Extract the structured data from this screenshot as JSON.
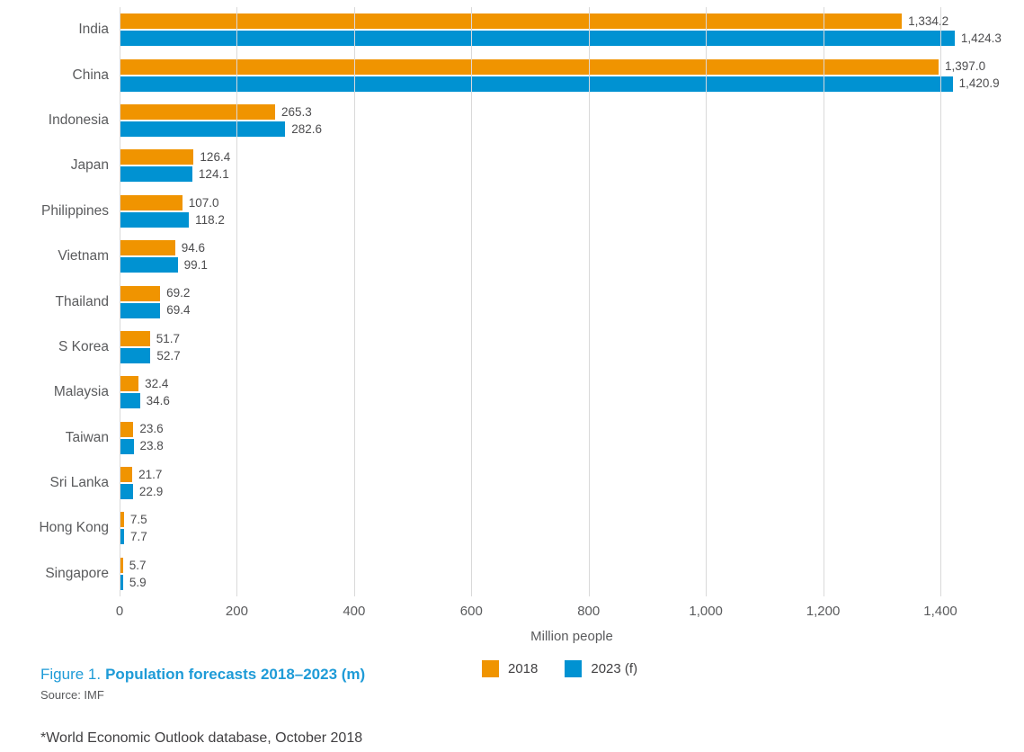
{
  "chart_data": {
    "type": "bar",
    "orientation": "horizontal",
    "categories": [
      "India",
      "China",
      "Indonesia",
      "Japan",
      "Philippines",
      "Vietnam",
      "Thailand",
      "S Korea",
      "Malaysia",
      "Taiwan",
      "Sri Lanka",
      "Hong Kong",
      "Singapore"
    ],
    "series": [
      {
        "name": "2018",
        "color": "#f09400",
        "values": [
          1334.2,
          1397.0,
          265.3,
          126.4,
          107.0,
          94.6,
          69.2,
          51.7,
          32.4,
          23.6,
          21.7,
          7.5,
          5.7
        ],
        "labels": [
          "1,334.2",
          "1,397.0",
          "265.3",
          "126.4",
          "107.0",
          "94.6",
          "69.2",
          "51.7",
          "32.4",
          "23.6",
          "21.7",
          "7.5",
          "5.7"
        ]
      },
      {
        "name": "2023 (f)",
        "color": "#0092d2",
        "values": [
          1424.3,
          1420.9,
          282.6,
          124.1,
          118.2,
          99.1,
          69.4,
          52.7,
          34.6,
          23.8,
          22.9,
          7.7,
          5.9
        ],
        "labels": [
          "1,424.3",
          "1,420.9",
          "282.6",
          "124.1",
          "118.2",
          "99.1",
          "69.4",
          "52.7",
          "34.6",
          "23.8",
          "22.9",
          "7.7",
          "5.9"
        ]
      }
    ],
    "xlabel": "Million people",
    "x_tick_values": [
      0,
      200,
      400,
      600,
      800,
      1000,
      1200,
      1400
    ],
    "x_ticks": [
      "0",
      "200",
      "400",
      "600",
      "800",
      "1,000",
      "1,200",
      "1,400"
    ],
    "xlim": [
      0,
      1543
    ],
    "grid": true,
    "legend_position": "bottom"
  },
  "legend": [
    {
      "label": "2018",
      "color": "#f09400"
    },
    {
      "label": "2023 (f)",
      "color": "#0092d2"
    }
  ],
  "caption": {
    "figure_label": "Figure 1.",
    "title": "Population forecasts 2018–2023 (m)"
  },
  "source": "Source: IMF",
  "footnote": "*World Economic Outlook database, October 2018"
}
